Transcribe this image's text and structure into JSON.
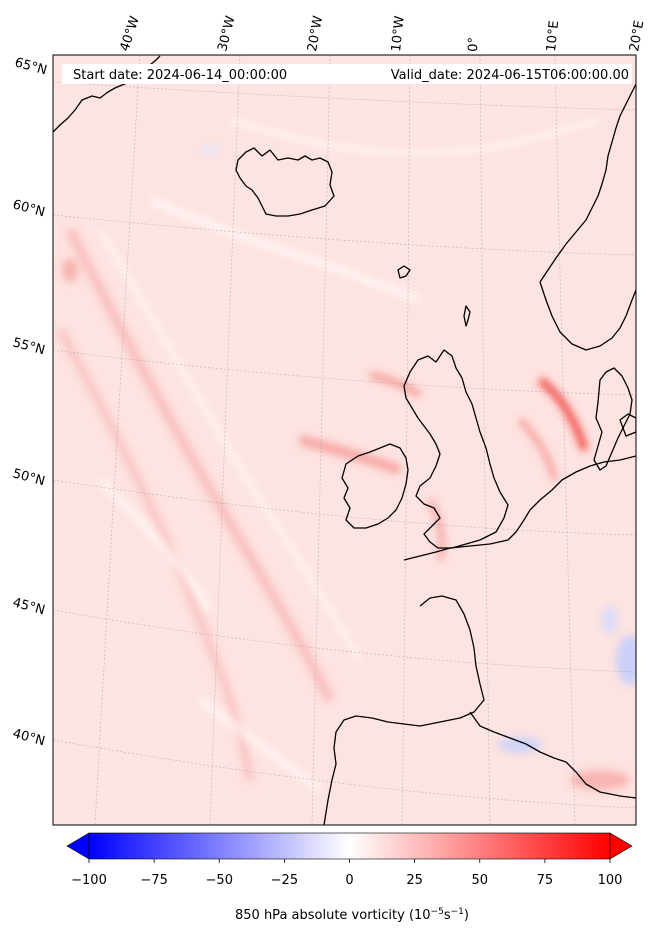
{
  "header": {
    "start_date": "Start date: 2024-06-14_00:00:00",
    "valid_date": "Valid_date: 2024-06-15T06:00:00.00"
  },
  "lon_labels": [
    "40°W",
    "30°W",
    "20°W",
    "10°W",
    "0°",
    "10°E",
    "20°E"
  ],
  "lat_labels": [
    "65°N",
    "60°N",
    "55°N",
    "50°N",
    "45°N",
    "40°N"
  ],
  "colorbar": {
    "ticks": [
      "−100",
      "−75",
      "−50",
      "−25",
      "0",
      "25",
      "50",
      "75",
      "100"
    ],
    "tick_values": [
      -100,
      -75,
      -50,
      -25,
      0,
      25,
      50,
      75,
      100
    ],
    "range": [
      -100,
      100
    ],
    "title_main": "850 hPa absolute vorticity (10",
    "title_exp1": "−5",
    "title_mid": "s",
    "title_exp2": "−1",
    "title_end": ")",
    "colormap": "bwr",
    "extend": "both"
  },
  "colors": {
    "ocean_base": "#fde3e1",
    "positive": "#ff0000",
    "negative": "#0000ff",
    "coastline": "#000000"
  }
}
